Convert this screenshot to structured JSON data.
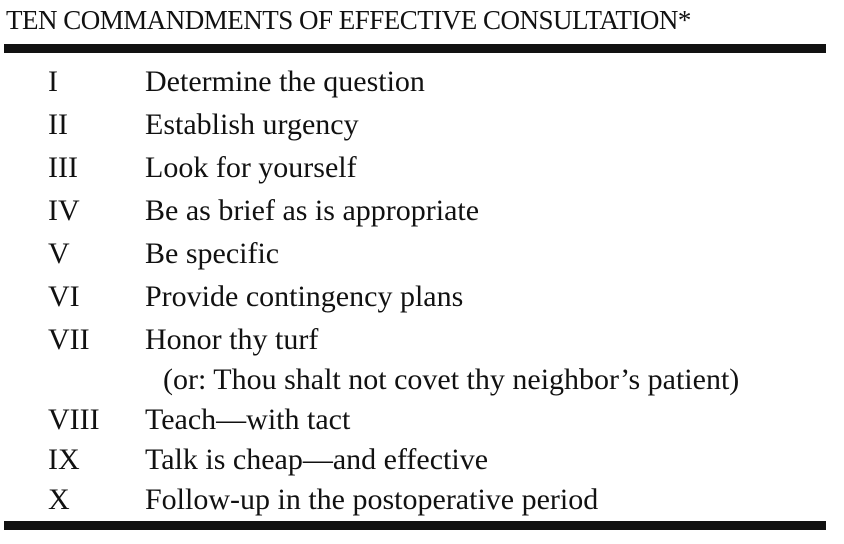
{
  "title": "TEN COMMANDMENTS OF EFFECTIVE CONSULTATION*",
  "commandments": [
    {
      "numeral": "I",
      "text": "Determine the question"
    },
    {
      "numeral": "II",
      "text": "Establish urgency"
    },
    {
      "numeral": "III",
      "text": "Look for yourself"
    },
    {
      "numeral": "IV",
      "text": "Be as brief as is appropriate"
    },
    {
      "numeral": "V",
      "text": "Be specific"
    },
    {
      "numeral": "VI",
      "text": "Provide contingency plans"
    },
    {
      "numeral": "VII",
      "text": "Honor thy turf",
      "note": "(or: Thou shalt not covet thy neighbor’s patient)"
    },
    {
      "numeral": "VIII",
      "text": "Teach—with tact"
    },
    {
      "numeral": "IX",
      "text": "Talk is cheap—and effective"
    },
    {
      "numeral": "X",
      "text": "Follow-up in the postoperative period"
    }
  ]
}
